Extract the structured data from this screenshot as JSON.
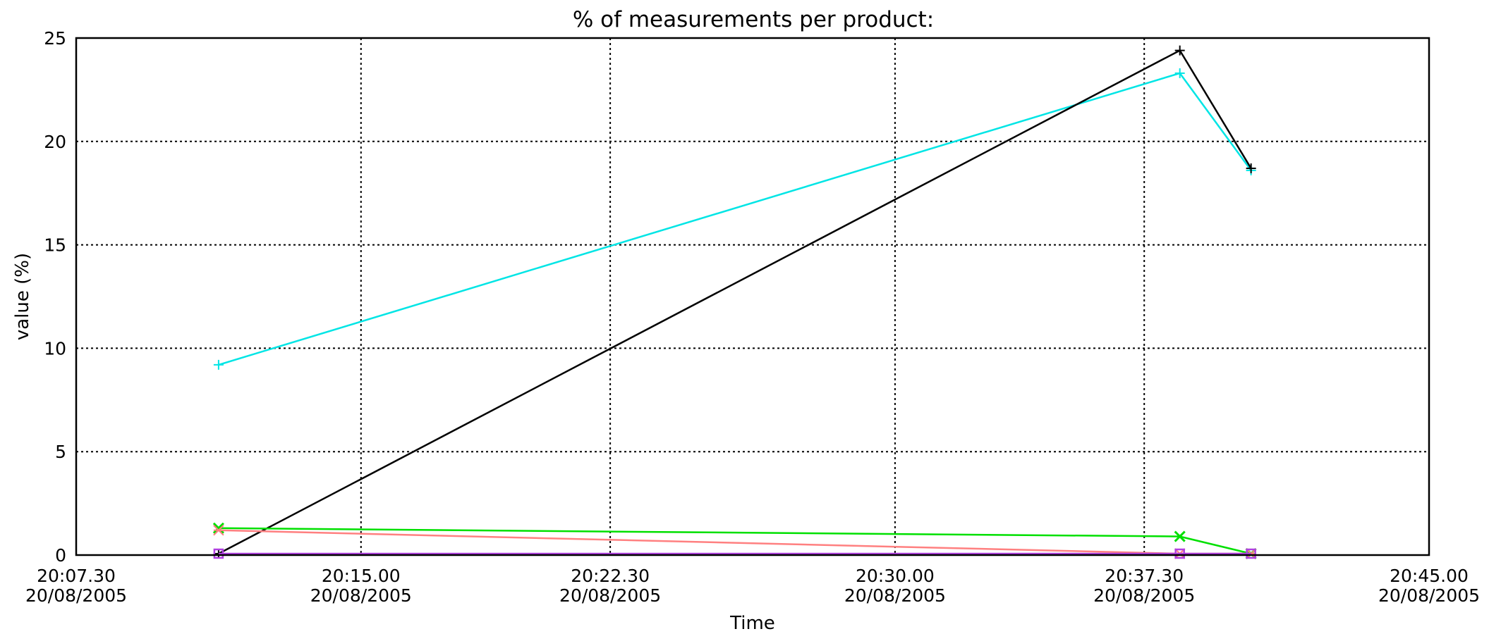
{
  "chart_data": {
    "type": "line",
    "title": "% of measurements per product:",
    "xlabel": "Time",
    "ylabel": "value (%)",
    "xlim": [
      "20:07.30 20/08/2005",
      "20:45.00 20/08/2005"
    ],
    "ylim": [
      0,
      25
    ],
    "grid": true,
    "legend": "none",
    "x_ticks": [
      {
        "time": "20:07.30",
        "date": "20/08/2005"
      },
      {
        "time": "20:15.00",
        "date": "20/08/2005"
      },
      {
        "time": "20:22.30",
        "date": "20/08/2005"
      },
      {
        "time": "20:30.00",
        "date": "20/08/2005"
      },
      {
        "time": "20:37.30",
        "date": "20/08/2005"
      },
      {
        "time": "20:45.00",
        "date": "20/08/2005"
      }
    ],
    "y_ticks": [
      "0",
      "5",
      "10",
      "15",
      "20",
      "25"
    ],
    "series": [
      {
        "color": "#00e5e5",
        "marker": "tick",
        "points": [
          [
            "20:11.30",
            9.2
          ],
          [
            "20:38.40",
            23.3
          ],
          [
            "20:40.20",
            18.6
          ]
        ]
      },
      {
        "color": "#000000",
        "marker": "tick",
        "points": [
          [
            "20:11.30",
            0.0
          ],
          [
            "20:38.40",
            24.4
          ],
          [
            "20:40.20",
            18.7
          ]
        ]
      },
      {
        "color": "#00e000",
        "marker": "x",
        "points": [
          [
            "20:11.30",
            1.3
          ],
          [
            "20:38.40",
            0.9
          ],
          [
            "20:40.20",
            0.0
          ]
        ]
      },
      {
        "color": "#ff8080",
        "marker": "asterisk",
        "points": [
          [
            "20:11.30",
            1.2
          ],
          [
            "20:38.40",
            0.0
          ],
          [
            "20:40.20",
            0.0
          ]
        ]
      },
      {
        "color": "#b040e0",
        "marker": "square",
        "points": [
          [
            "20:11.30",
            0.0
          ],
          [
            "20:38.40",
            0.0
          ],
          [
            "20:40.20",
            0.0
          ]
        ]
      }
    ]
  }
}
